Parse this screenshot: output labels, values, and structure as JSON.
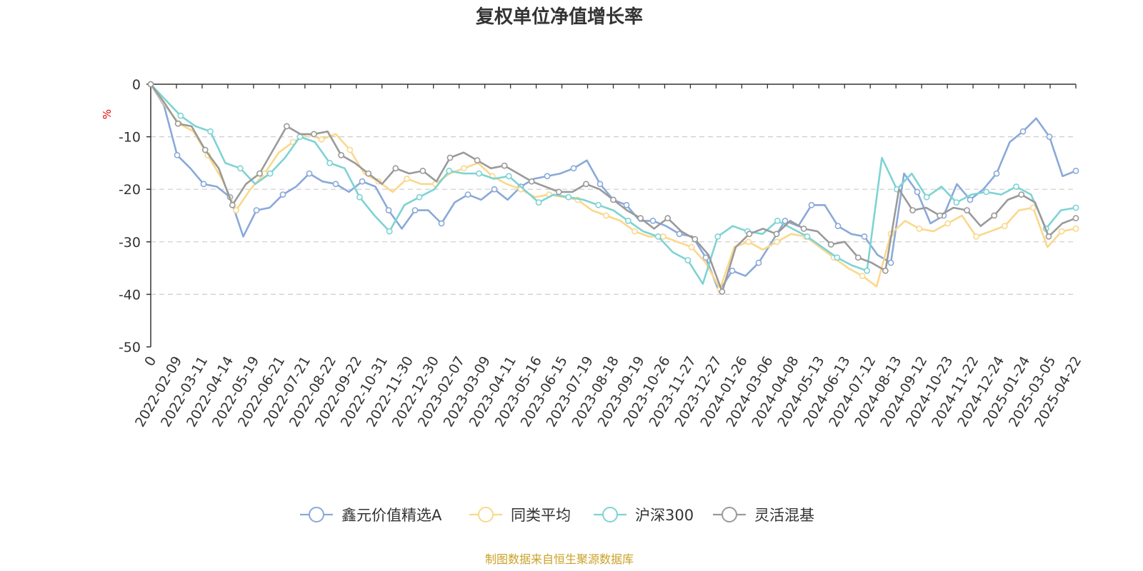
{
  "chart_data": {
    "type": "line",
    "title": "复权单位净值增长率",
    "ylabel": "%",
    "ylim": [
      -50,
      0
    ],
    "yticks": [
      0,
      -10,
      -20,
      -30,
      -40,
      -50
    ],
    "grid": "horizontal-dashed",
    "legend_position": "bottom",
    "x_labels": [
      "0",
      "2022-02-09",
      "2022-03-11",
      "2022-04-14",
      "2022-05-19",
      "2022-06-21",
      "2022-07-21",
      "2022-08-22",
      "2022-09-22",
      "2022-10-31",
      "2022-11-30",
      "2022-12-30",
      "2023-02-07",
      "2023-03-09",
      "2023-04-11",
      "2023-05-16",
      "2023-06-15",
      "2023-07-19",
      "2023-08-18",
      "2023-09-19",
      "2023-10-26",
      "2023-11-27",
      "2023-12-27",
      "2024-01-26",
      "2024-03-06",
      "2024-04-08",
      "2024-05-13",
      "2024-06-13",
      "2024-07-12",
      "2024-08-13",
      "2024-09-12",
      "2024-10-23",
      "2024-11-22",
      "2024-12-24",
      "2025-01-24",
      "2025-03-05",
      "2025-04-22"
    ],
    "series": [
      {
        "name": "鑫元价值精选A",
        "color": "#8aa9d9",
        "values": [
          0,
          -4,
          -13.5,
          -16,
          -19,
          -19.5,
          -21.5,
          -29,
          -24,
          -23.5,
          -21,
          -19.5,
          -17,
          -18.5,
          -19,
          -20.5,
          -18.5,
          -19.5,
          -24,
          -27.5,
          -24,
          -24,
          -26.5,
          -22.5,
          -21,
          -22,
          -20,
          -22,
          -19.5,
          -18,
          -17.5,
          -17,
          -16,
          -14.5,
          -19,
          -22,
          -23,
          -26,
          -26,
          -27,
          -28.5,
          -29,
          -33,
          -39.5,
          -35.5,
          -36.5,
          -34,
          -30,
          -26,
          -27,
          -23,
          -23,
          -27,
          -28.5,
          -29,
          -32.5,
          -34,
          -17,
          -20.5,
          -26.5,
          -25,
          -19,
          -22,
          -20,
          -17,
          -11,
          -9,
          -6.5,
          -10,
          -17.5,
          -16.5
        ]
      },
      {
        "name": "同类平均",
        "color": "#fad88c",
        "values": [
          0,
          -4,
          -7.5,
          -9,
          -13.5,
          -18,
          -24,
          -20,
          -17,
          -13,
          -11,
          -9.5,
          -10.5,
          -9.5,
          -12.5,
          -17,
          -18.5,
          -20.5,
          -18,
          -19,
          -19,
          -17,
          -16,
          -15,
          -17.5,
          -19,
          -20,
          -21.5,
          -21,
          -21.5,
          -22,
          -24,
          -25,
          -26,
          -28,
          -29,
          -29,
          -30,
          -31,
          -34,
          -39,
          -31,
          -30,
          -31.5,
          -30,
          -28.5,
          -29,
          -31,
          -33,
          -35,
          -36.5,
          -38.5,
          -28.5,
          -26,
          -27.5,
          -28,
          -26.5,
          -25,
          -29,
          -28,
          -27,
          -24,
          -23.5,
          -31,
          -28,
          -27.5
        ]
      },
      {
        "name": "沪深300",
        "color": "#7ed3d4",
        "values": [
          0,
          -3,
          -6,
          -8,
          -9,
          -15,
          -16,
          -19,
          -17,
          -14,
          -10,
          -11,
          -15,
          -16,
          -21.5,
          -25,
          -28,
          -23,
          -21.5,
          -20,
          -16.5,
          -17,
          -17,
          -18,
          -17.5,
          -20,
          -22.5,
          -21,
          -21.5,
          -22,
          -23,
          -24,
          -26,
          -28,
          -29,
          -32,
          -33.5,
          -38,
          -29,
          -27,
          -28,
          -28.5,
          -26,
          -27.5,
          -29,
          -31,
          -33,
          -34.5,
          -35.5,
          -14,
          -20,
          -17,
          -21.5,
          -19.5,
          -22.5,
          -21,
          -20.5,
          -21,
          -19.5,
          -21,
          -27.5,
          -24,
          -23.5
        ]
      },
      {
        "name": "灵活混基",
        "color": "#9a9a9a",
        "values": [
          0,
          -3.5,
          -7.5,
          -8,
          -12.5,
          -16,
          -23,
          -19,
          -17,
          -12.5,
          -8,
          -9.5,
          -9.5,
          -9,
          -13.5,
          -15,
          -17,
          -19,
          -16,
          -17,
          -16.5,
          -18.5,
          -14,
          -13,
          -14.5,
          -16,
          -15.5,
          -17,
          -18.5,
          -19.5,
          -20.5,
          -20.5,
          -19,
          -20,
          -22,
          -24,
          -25.5,
          -27.5,
          -25.5,
          -28,
          -29.5,
          -32.5,
          -39.5,
          -31,
          -28.5,
          -27.5,
          -28.5,
          -26,
          -27.5,
          -28,
          -30.5,
          -30,
          -33,
          -34,
          -35.5,
          -20,
          -24,
          -23.5,
          -25,
          -23.5,
          -24,
          -27,
          -25,
          -22,
          -21,
          -22.5,
          -29,
          -26.5,
          -25.5
        ]
      }
    ]
  },
  "source": "制图数据来自恒生聚源数据库"
}
